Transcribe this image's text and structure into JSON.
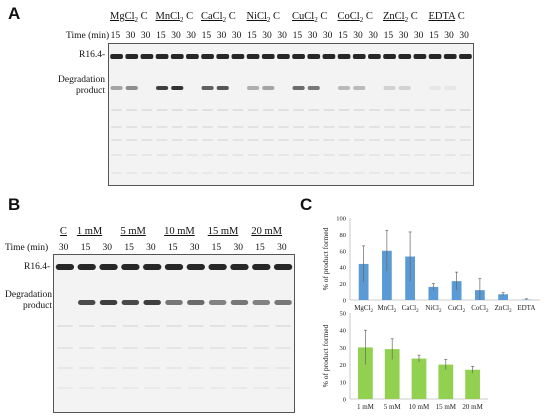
{
  "panels": {
    "a": {
      "letter": "A",
      "time_label": "Time (min)",
      "conditions": [
        {
          "label": "MgCl",
          "sub": "2",
          "control": "C"
        },
        {
          "label": "MnCl",
          "sub": "2",
          "control": "C"
        },
        {
          "label": "CaCl",
          "sub": "2",
          "control": "C"
        },
        {
          "label": "NiCl",
          "sub": "2",
          "control": "C"
        },
        {
          "label": "CuCl",
          "sub": "2",
          "control": "C"
        },
        {
          "label": "CoCl",
          "sub": "2",
          "control": "C"
        },
        {
          "label": "ZnCl",
          "sub": "2",
          "control": "C"
        },
        {
          "label": "EDTA",
          "sub": "",
          "control": "C"
        }
      ],
      "times": [
        "15",
        "30",
        "30"
      ],
      "band_top_label": "R16.4-",
      "band_bottom_label_line1": "Degradation",
      "band_bottom_label_line2": "product",
      "product_intensity": [
        0.35,
        0.45,
        0.0,
        0.8,
        0.85,
        0.0,
        0.65,
        0.7,
        0.0,
        0.3,
        0.35,
        0.0,
        0.6,
        0.55,
        0.0,
        0.25,
        0.25,
        0.0,
        0.15,
        0.15,
        0.0,
        0.05,
        0.05,
        0.0
      ]
    },
    "b": {
      "letter": "B",
      "time_label": "Time (min)",
      "control_label": "C",
      "control_time": "30",
      "concentrations": [
        "1 mM",
        "5 mM",
        "10 mM",
        "15 mM",
        "20 mM"
      ],
      "times": [
        "15",
        "30"
      ],
      "band_top_label": "R16.4-",
      "band_bottom_label_line1": "Degradation",
      "band_bottom_label_line2": "product",
      "product_intensity": [
        0.0,
        0.75,
        0.8,
        0.75,
        0.8,
        0.55,
        0.6,
        0.5,
        0.55,
        0.5,
        0.55
      ]
    },
    "c": {
      "letter": "C"
    }
  },
  "chart_data": [
    {
      "type": "bar",
      "categories": [
        "MgCl2",
        "MnCl2",
        "CaCl2",
        "NiCl2",
        "CuCl2",
        "CoCl2",
        "ZnCl2",
        "EDTA"
      ],
      "category_labels": [
        {
          "base": "MgCl",
          "sub": "2"
        },
        {
          "base": "MnCl",
          "sub": "2"
        },
        {
          "base": "CaCl",
          "sub": "2"
        },
        {
          "base": "NiCl",
          "sub": "2"
        },
        {
          "base": "CuCl",
          "sub": "2"
        },
        {
          "base": "CoCl",
          "sub": "2"
        },
        {
          "base": "ZnCl",
          "sub": "2"
        },
        {
          "base": "EDTA",
          "sub": ""
        }
      ],
      "values": [
        44,
        60,
        53,
        16,
        23,
        12,
        7,
        0.5
      ],
      "errors": [
        22,
        25,
        30,
        4,
        11,
        14,
        2,
        1
      ],
      "ylabel": "% of product formed",
      "ylim": [
        0,
        100
      ],
      "yticks": [
        "0",
        "20",
        "40",
        "60",
        "80",
        "100"
      ],
      "color": "#5b9bd5"
    },
    {
      "type": "bar",
      "categories": [
        "1 mM",
        "5 mM",
        "10 mM",
        "15 mM",
        "20 mM"
      ],
      "values": [
        30,
        29,
        23.5,
        20,
        17
      ],
      "errors": [
        10,
        6,
        2,
        3,
        2
      ],
      "ylabel": "% of product formed",
      "ylim": [
        0,
        50
      ],
      "yticks": [
        "0",
        "10",
        "20",
        "30",
        "40",
        "50"
      ],
      "color": "#92d050"
    }
  ]
}
